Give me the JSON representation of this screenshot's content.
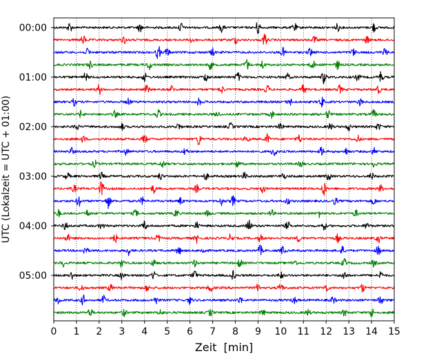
{
  "chart_data": {
    "type": "line",
    "title": "",
    "xlabel": "Zeit  [min]",
    "ylabel": "UTC (Lokalzeit = UTC + 01:00)",
    "xlim": [
      0,
      15
    ],
    "x_ticks": [
      "0",
      "1",
      "2",
      "3",
      "4",
      "5",
      "6",
      "7",
      "8",
      "9",
      "10",
      "11",
      "12",
      "13",
      "14",
      "15"
    ],
    "y_ticks": [
      "00:00",
      "01:00",
      "02:00",
      "03:00",
      "04:00",
      "05:00"
    ],
    "grid": "vertical-dotted",
    "trace_interval_min": 15,
    "rows_per_hour": 4,
    "series": [
      {
        "start": "00:00",
        "color": "#000000",
        "bursts": [
          [
            0.7,
            7.0
          ],
          [
            3.8,
            6.0
          ],
          [
            5.6,
            7.0
          ],
          [
            7.4,
            6.0
          ],
          [
            9.0,
            10.0
          ],
          [
            10.6,
            6.0
          ],
          [
            12.5,
            5.0
          ],
          [
            14.1,
            6.5
          ]
        ]
      },
      {
        "start": "00:15",
        "color": "#ff0000",
        "bursts": [
          [
            1.3,
            6.0
          ],
          [
            3.1,
            5.0
          ],
          [
            6.1,
            6.0
          ],
          [
            8.0,
            5.0
          ],
          [
            9.3,
            9.0
          ],
          [
            11.5,
            5.0
          ],
          [
            13.8,
            5.0
          ]
        ]
      },
      {
        "start": "00:30",
        "color": "#0000ff",
        "bursts": [
          [
            1.5,
            5.0
          ],
          [
            4.6,
            10.0
          ],
          [
            5.0,
            6.0
          ],
          [
            7.0,
            5.0
          ],
          [
            10.1,
            6.0
          ],
          [
            11.3,
            6.0
          ],
          [
            13.2,
            5.0
          ],
          [
            14.6,
            5.0
          ]
        ]
      },
      {
        "start": "00:45",
        "color": "#008000",
        "bursts": [
          [
            1.6,
            5.0
          ],
          [
            4.2,
            7.0
          ],
          [
            6.9,
            6.0
          ],
          [
            8.5,
            8.0
          ],
          [
            9.2,
            6.0
          ],
          [
            11.4,
            7.0
          ],
          [
            12.5,
            6.0
          ]
        ]
      },
      {
        "start": "01:00",
        "color": "#000000",
        "bursts": [
          [
            1.4,
            6.0
          ],
          [
            4.0,
            6.0
          ],
          [
            6.7,
            6.0
          ],
          [
            8.1,
            7.0
          ],
          [
            10.3,
            5.0
          ],
          [
            11.9,
            9.0
          ],
          [
            13.4,
            5.0
          ],
          [
            14.4,
            8.0
          ]
        ]
      },
      {
        "start": "01:15",
        "color": "#ff0000",
        "bursts": [
          [
            2.0,
            7.0
          ],
          [
            4.1,
            6.0
          ],
          [
            5.2,
            5.0
          ],
          [
            7.4,
            5.0
          ],
          [
            9.4,
            6.0
          ],
          [
            11.0,
            7.0
          ],
          [
            12.6,
            6.0
          ],
          [
            14.3,
            6.0
          ]
        ]
      },
      {
        "start": "01:30",
        "color": "#0000ff",
        "bursts": [
          [
            0.9,
            5.0
          ],
          [
            3.3,
            5.0
          ],
          [
            6.4,
            5.0
          ],
          [
            10.4,
            5.0
          ],
          [
            11.8,
            8.0
          ],
          [
            13.5,
            5.0
          ]
        ]
      },
      {
        "start": "01:45",
        "color": "#008000",
        "bursts": [
          [
            1.2,
            5.0
          ],
          [
            2.7,
            5.0
          ],
          [
            4.6,
            6.0
          ],
          [
            7.2,
            5.0
          ],
          [
            9.6,
            5.0
          ],
          [
            12.1,
            6.0
          ],
          [
            14.1,
            6.0
          ]
        ]
      },
      {
        "start": "02:00",
        "color": "#000000",
        "bursts": [
          [
            1.0,
            5.0
          ],
          [
            3.0,
            5.0
          ],
          [
            5.5,
            5.0
          ],
          [
            7.8,
            5.0
          ],
          [
            10.0,
            5.0
          ],
          [
            12.2,
            5.0
          ],
          [
            13.0,
            5.0
          ],
          [
            14.3,
            5.0
          ]
        ]
      },
      {
        "start": "02:15",
        "color": "#ff0000",
        "bursts": [
          [
            1.3,
            5.0
          ],
          [
            4.0,
            7.0
          ],
          [
            6.4,
            9.0
          ],
          [
            8.5,
            5.0
          ],
          [
            9.4,
            7.0
          ],
          [
            10.8,
            6.0
          ],
          [
            13.4,
            5.0
          ]
        ]
      },
      {
        "start": "02:30",
        "color": "#0000ff",
        "bursts": [
          [
            0.8,
            5.0
          ],
          [
            3.2,
            5.0
          ],
          [
            5.8,
            5.0
          ],
          [
            9.7,
            9.0
          ],
          [
            11.8,
            6.0
          ],
          [
            12.9,
            5.0
          ],
          [
            14.1,
            5.0
          ]
        ]
      },
      {
        "start": "02:45",
        "color": "#008000",
        "bursts": [
          [
            1.8,
            5.0
          ],
          [
            4.8,
            5.0
          ],
          [
            8.1,
            5.0
          ],
          [
            10.9,
            5.0
          ],
          [
            14.1,
            5.0
          ]
        ]
      },
      {
        "start": "03:00",
        "color": "#000000",
        "bursts": [
          [
            0.6,
            5.0
          ],
          [
            2.1,
            5.0
          ],
          [
            4.7,
            5.0
          ],
          [
            6.7,
            5.0
          ],
          [
            8.4,
            5.0
          ],
          [
            10.1,
            5.0
          ],
          [
            12.1,
            6.0
          ],
          [
            14.0,
            5.0
          ]
        ]
      },
      {
        "start": "03:15",
        "color": "#ff0000",
        "bursts": [
          [
            0.9,
            5.0
          ],
          [
            2.1,
            11.0
          ],
          [
            4.4,
            6.0
          ],
          [
            6.3,
            5.0
          ],
          [
            9.2,
            6.0
          ],
          [
            11.9,
            10.0
          ],
          [
            14.4,
            5.0
          ]
        ]
      },
      {
        "start": "03:30",
        "color": "#0000ff",
        "bursts": [
          [
            1.1,
            8.0
          ],
          [
            2.4,
            10.0
          ],
          [
            3.9,
            5.0
          ],
          [
            5.6,
            5.0
          ],
          [
            7.4,
            6.0
          ],
          [
            7.9,
            7.0
          ],
          [
            10.3,
            5.0
          ],
          [
            12.4,
            5.0
          ],
          [
            14.1,
            5.0
          ]
        ]
      },
      {
        "start": "03:45",
        "color": "#008000",
        "bursts": [
          [
            0.2,
            5.0
          ],
          [
            1.5,
            5.0
          ],
          [
            3.6,
            5.0
          ],
          [
            5.4,
            6.0
          ],
          [
            6.8,
            5.0
          ],
          [
            9.6,
            5.0
          ],
          [
            11.7,
            5.0
          ],
          [
            13.3,
            5.0
          ]
        ]
      },
      {
        "start": "04:00",
        "color": "#000000",
        "bursts": [
          [
            0.5,
            6.0
          ],
          [
            2.1,
            5.0
          ],
          [
            4.0,
            7.0
          ],
          [
            6.3,
            5.0
          ],
          [
            8.6,
            9.0
          ],
          [
            10.3,
            6.0
          ],
          [
            11.9,
            6.0
          ],
          [
            13.8,
            5.0
          ]
        ]
      },
      {
        "start": "04:15",
        "color": "#ff0000",
        "bursts": [
          [
            0.6,
            6.0
          ],
          [
            2.7,
            6.0
          ],
          [
            4.6,
            5.0
          ],
          [
            6.3,
            6.0
          ],
          [
            7.8,
            6.0
          ],
          [
            9.1,
            5.0
          ],
          [
            10.8,
            5.0
          ],
          [
            12.5,
            6.0
          ],
          [
            14.3,
            6.0
          ]
        ]
      },
      {
        "start": "04:30",
        "color": "#0000ff",
        "bursts": [
          [
            1.4,
            7.0
          ],
          [
            3.3,
            6.0
          ],
          [
            5.5,
            6.0
          ],
          [
            6.6,
            5.0
          ],
          [
            9.1,
            7.0
          ],
          [
            10.1,
            6.0
          ],
          [
            12.7,
            6.0
          ],
          [
            14.3,
            7.0
          ]
        ]
      },
      {
        "start": "04:45",
        "color": "#008000",
        "bursts": [
          [
            0.4,
            5.0
          ],
          [
            3.0,
            6.0
          ],
          [
            4.4,
            5.0
          ],
          [
            6.2,
            5.0
          ],
          [
            8.2,
            6.0
          ],
          [
            10.6,
            6.0
          ],
          [
            12.8,
            6.0
          ],
          [
            14.1,
            5.0
          ]
        ]
      },
      {
        "start": "05:00",
        "color": "#000000",
        "bursts": [
          [
            0.8,
            6.0
          ],
          [
            3.0,
            5.0
          ],
          [
            4.4,
            6.0
          ],
          [
            6.2,
            8.0
          ],
          [
            7.9,
            6.0
          ],
          [
            10.0,
            5.0
          ],
          [
            12.8,
            7.0
          ],
          [
            14.4,
            6.0
          ]
        ]
      },
      {
        "start": "05:15",
        "color": "#ff0000",
        "bursts": [
          [
            1.2,
            6.0
          ],
          [
            2.5,
            5.0
          ],
          [
            4.1,
            5.0
          ],
          [
            6.9,
            6.0
          ],
          [
            9.0,
            5.0
          ],
          [
            10.0,
            8.0
          ],
          [
            12.0,
            6.0
          ],
          [
            13.6,
            6.0
          ]
        ]
      },
      {
        "start": "05:30",
        "color": "#0000ff",
        "bursts": [
          [
            0.2,
            5.0
          ],
          [
            1.3,
            7.0
          ],
          [
            2.2,
            6.0
          ],
          [
            4.5,
            5.0
          ],
          [
            6.0,
            5.0
          ],
          [
            8.2,
            5.0
          ],
          [
            10.6,
            5.0
          ],
          [
            12.3,
            5.0
          ],
          [
            14.4,
            7.0
          ]
        ]
      },
      {
        "start": "05:45",
        "color": "#008000",
        "bursts": [
          [
            1.6,
            6.0
          ],
          [
            3.1,
            5.0
          ],
          [
            4.7,
            5.0
          ],
          [
            6.9,
            5.0
          ],
          [
            9.2,
            5.0
          ],
          [
            11.2,
            5.0
          ],
          [
            12.8,
            5.0
          ],
          [
            14.0,
            7.0
          ]
        ]
      }
    ]
  }
}
